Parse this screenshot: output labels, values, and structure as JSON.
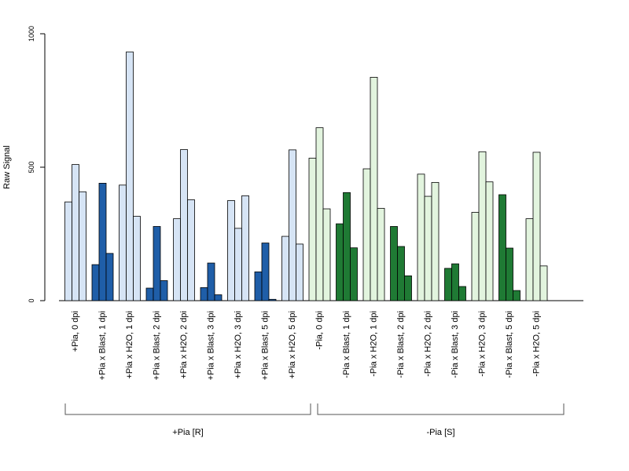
{
  "chart_data": {
    "type": "bar",
    "ylabel": "Raw Signal",
    "ylim": [
      0,
      1000
    ],
    "yticks": [
      "0",
      "500",
      "1000"
    ],
    "grid": false,
    "legend": "none",
    "categories": [
      "+Pia, 0 dpi",
      "+Pia x Blast, 1 dpi",
      "+Pia x H2O, 1 dpi",
      "+Pia x Blast, 2 dpi",
      "+Pia x H2O, 2 dpi",
      "+Pia x Blast, 3 dpi",
      "+Pia x H2O, 3 dpi",
      "+Pia x Blast, 5 dpi",
      "+Pia x H2O, 5 dpi",
      "-Pia, 0 dpi",
      "-Pia x Blast, 1 dpi",
      "-Pia x H2O, 1 dpi",
      "-Pia x Blast, 2 dpi",
      "-Pia x H2O, 2 dpi",
      "-Pia x Blast, 3 dpi",
      "-Pia x H2O, 3 dpi",
      "-Pia x Blast, 5 dpi",
      "-Pia x H2O, 5 dpi"
    ],
    "replicates": [
      [
        370,
        510,
        408
      ],
      [
        135,
        440,
        177
      ],
      [
        433,
        932,
        316
      ],
      [
        47,
        278,
        75
      ],
      [
        307,
        566,
        378
      ],
      [
        49,
        141,
        22
      ],
      [
        375,
        271,
        393
      ],
      [
        108,
        216,
        5
      ],
      [
        241,
        565,
        212
      ],
      [
        534,
        648,
        344
      ],
      [
        288,
        405,
        198
      ],
      [
        494,
        837,
        346
      ],
      [
        278,
        203,
        93
      ],
      [
        474,
        391,
        443
      ],
      [
        121,
        138,
        53
      ],
      [
        331,
        558,
        445
      ],
      [
        397,
        197,
        38
      ],
      [
        307,
        556,
        130
      ]
    ],
    "bar_colors": [
      "#d6e4f5",
      "#1f5ea8",
      "#d6e4f5",
      "#1f5ea8",
      "#d6e4f5",
      "#1f5ea8",
      "#d6e4f5",
      "#1f5ea8",
      "#d6e4f5",
      "#e2f4de",
      "#1f7a34",
      "#e2f4de",
      "#1f7a34",
      "#e2f4de",
      "#1f7a34",
      "#e2f4de",
      "#1f7a34",
      "#e2f4de"
    ],
    "groups": [
      {
        "label": "+Pia [R]",
        "first": 0,
        "last": 8
      },
      {
        "label": "-Pia [S]",
        "first": 9,
        "last": 17
      }
    ]
  }
}
